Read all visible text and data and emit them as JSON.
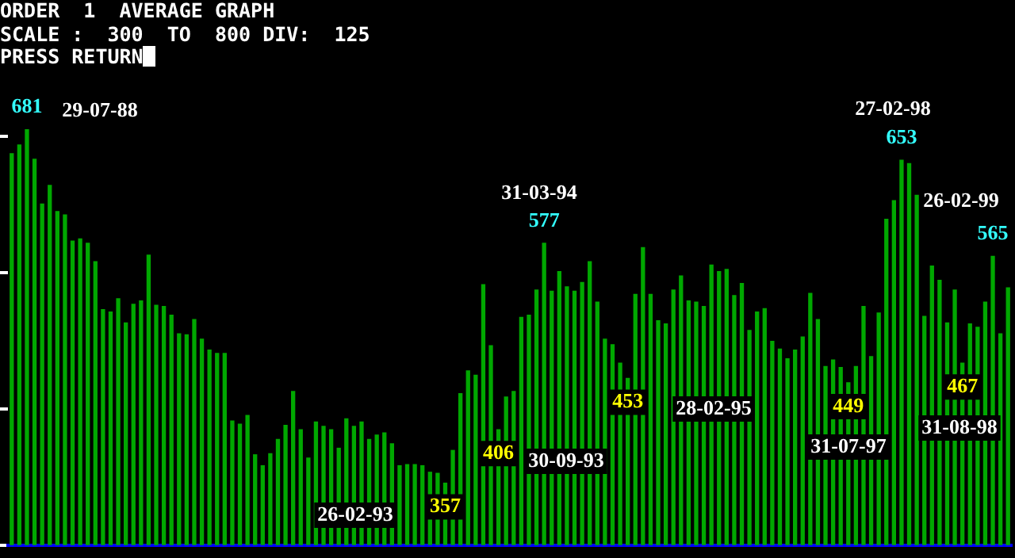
{
  "chart_data": {
    "type": "bar",
    "title": "ORDER  1  AVERAGE GRAPH",
    "subtitle": "SCALE :  300  TO  800 DIV:  125",
    "annotations": [
      "PRESS RETURN",
      "29-07-88",
      "26-02-93",
      "30-09-93",
      "31-03-94",
      "28-02-95",
      "31-07-97",
      "27-02-98",
      "31-08-98",
      "26-02-99"
    ],
    "categories": [
      null,
      null,
      null,
      null,
      null,
      null,
      null,
      null,
      null,
      null,
      null,
      null,
      null,
      null,
      null,
      null,
      null,
      null,
      null,
      null,
      null,
      null,
      null,
      null,
      null,
      null,
      null,
      null,
      null,
      null,
      null,
      null,
      null,
      null,
      null,
      null,
      null,
      null,
      null,
      null,
      null,
      null,
      null,
      null,
      null,
      null,
      null,
      null,
      null,
      null,
      null,
      null,
      null,
      null,
      null,
      null,
      null,
      null,
      null,
      null,
      null,
      null,
      null,
      null,
      null,
      null,
      null,
      null,
      null,
      null,
      null,
      null,
      null,
      null,
      null,
      null,
      null,
      null,
      null,
      null,
      null,
      null,
      null,
      null,
      null,
      null,
      null,
      null,
      null,
      null,
      null,
      null,
      null,
      null,
      null,
      null,
      null,
      null,
      null,
      null,
      null,
      null,
      null,
      null,
      null,
      null,
      null,
      null,
      null,
      null,
      null,
      null,
      null,
      null,
      null,
      null,
      null,
      null,
      null,
      null,
      null,
      null,
      null,
      null,
      null,
      null,
      null,
      null,
      null,
      null,
      null,
      null
    ],
    "values": [
      659,
      667,
      681,
      654,
      613,
      630,
      606,
      603,
      579,
      581,
      577,
      560,
      516,
      514,
      526,
      504,
      521,
      524,
      566,
      520,
      519,
      511,
      494,
      493,
      507,
      489,
      479,
      476,
      476,
      414,
      411,
      419,
      383,
      373,
      384,
      397,
      410,
      441,
      406,
      380,
      413,
      409,
      406,
      389,
      416,
      409,
      413,
      397,
      401,
      403,
      393,
      373,
      374,
      374,
      373,
      367,
      366,
      357,
      387,
      439,
      460,
      456,
      539,
      483,
      406,
      436,
      441,
      509,
      511,
      534,
      577,
      533,
      551,
      537,
      533,
      541,
      560,
      523,
      489,
      484,
      467,
      453,
      530,
      573,
      530,
      506,
      503,
      534,
      547,
      524,
      523,
      519,
      557,
      551,
      553,
      529,
      540,
      497,
      514,
      517,
      487,
      480,
      471,
      479,
      491,
      531,
      507,
      464,
      470,
      463,
      449,
      464,
      519,
      473,
      513,
      599,
      616,
      653,
      650,
      621,
      510,
      556,
      543,
      504,
      534,
      467,
      503,
      500,
      523,
      565,
      494,
      536
    ],
    "value_labels": [
      null,
      null,
      "681",
      null,
      null,
      null,
      null,
      null,
      null,
      null,
      null,
      null,
      null,
      null,
      null,
      null,
      null,
      null,
      null,
      null,
      null,
      null,
      null,
      null,
      null,
      null,
      null,
      null,
      null,
      null,
      null,
      null,
      null,
      null,
      null,
      null,
      null,
      null,
      null,
      null,
      null,
      null,
      null,
      null,
      null,
      null,
      null,
      null,
      null,
      null,
      null,
      null,
      null,
      null,
      null,
      null,
      null,
      "357",
      null,
      null,
      null,
      null,
      null,
      null,
      "406",
      null,
      null,
      null,
      null,
      null,
      "577",
      null,
      null,
      null,
      null,
      null,
      null,
      null,
      null,
      null,
      null,
      "453",
      null,
      null,
      null,
      null,
      null,
      null,
      null,
      null,
      null,
      null,
      null,
      null,
      null,
      null,
      null,
      null,
      null,
      null,
      null,
      null,
      null,
      null,
      null,
      null,
      null,
      null,
      null,
      null,
      "449",
      null,
      null,
      null,
      null,
      null,
      null,
      "653",
      null,
      null,
      null,
      null,
      null,
      null,
      null,
      "467",
      null,
      null,
      null,
      "565",
      null,
      null
    ],
    "color": "#00a800",
    "ylim": [
      300,
      800
    ],
    "yticks": [
      {
        "value": 300,
        "label": null
      },
      {
        "value": 425,
        "label": null
      },
      {
        "value": 550,
        "label": null
      },
      {
        "value": 675,
        "label": null
      }
    ],
    "tick_labels": false
  }
}
